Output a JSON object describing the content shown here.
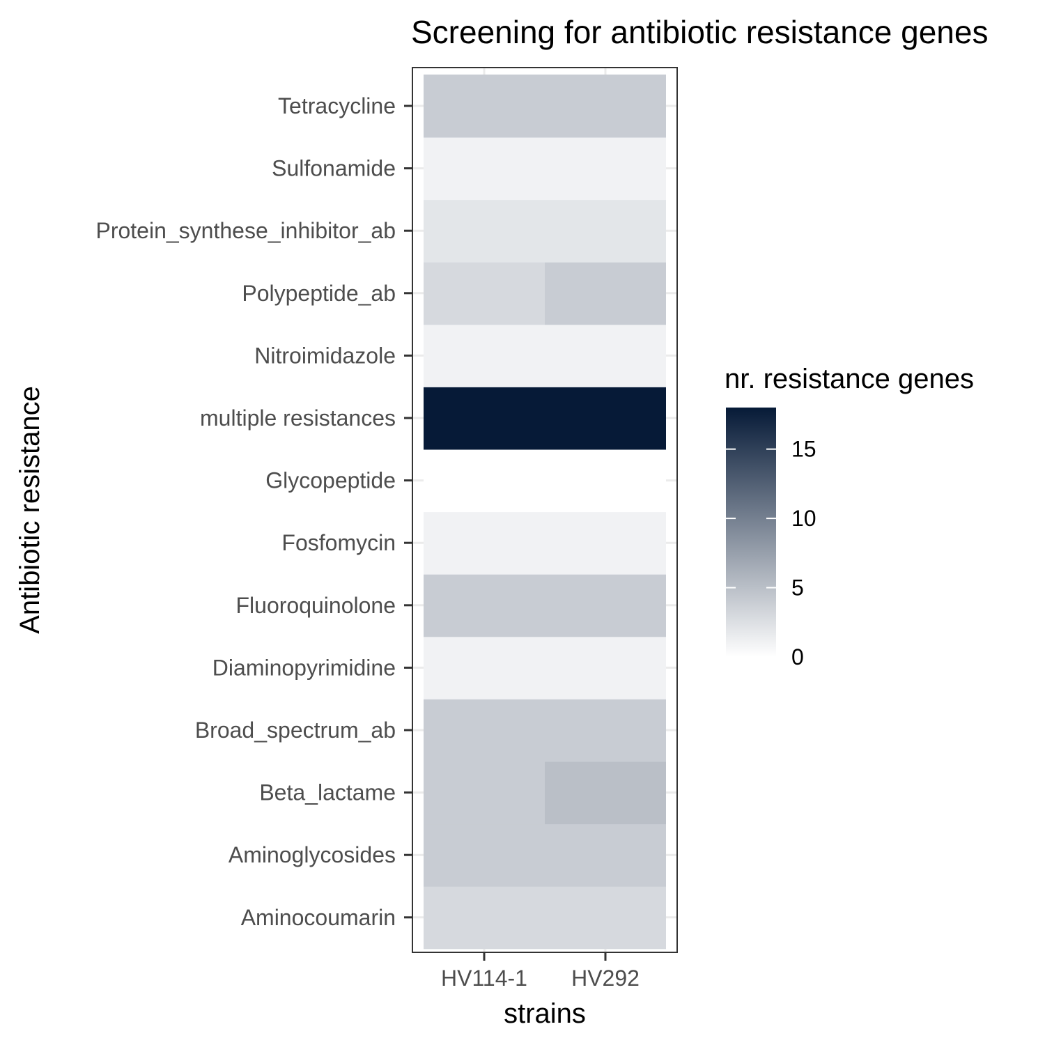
{
  "chart_data": {
    "type": "heatmap",
    "title": "Screening for antibiotic resistance genes",
    "xlabel": "strains",
    "ylabel": "Antibiotic resistance",
    "x_categories": [
      "HV114-1",
      "HV292"
    ],
    "y_categories": [
      "Aminocoumarin",
      "Aminoglycosides",
      "Beta_lactame",
      "Broad_spectrum_ab",
      "Diaminopyrimidine",
      "Fluoroquinolone",
      "Fosfomycin",
      "Glycopeptide",
      "multiple resistances",
      "Nitroimidazole",
      "Polypeptide_ab",
      "Protein_synthese_inhibitor_ab",
      "Sulfonamide",
      "Tetracycline"
    ],
    "values": [
      [
        3,
        3
      ],
      [
        4,
        4
      ],
      [
        4,
        5
      ],
      [
        4,
        4
      ],
      [
        1,
        1
      ],
      [
        4,
        4
      ],
      [
        1,
        1
      ],
      [
        0,
        0
      ],
      [
        18,
        18
      ],
      [
        1,
        1
      ],
      [
        3,
        4
      ],
      [
        2,
        2
      ],
      [
        1,
        1
      ],
      [
        4,
        4
      ]
    ],
    "legend": {
      "title": "nr. resistance genes",
      "ticks": [
        "0",
        "5",
        "10",
        "15"
      ],
      "range": [
        0,
        18
      ],
      "low_color": "#ffffff",
      "high_color": "#061a37"
    },
    "grid": true,
    "panel_border": true
  }
}
